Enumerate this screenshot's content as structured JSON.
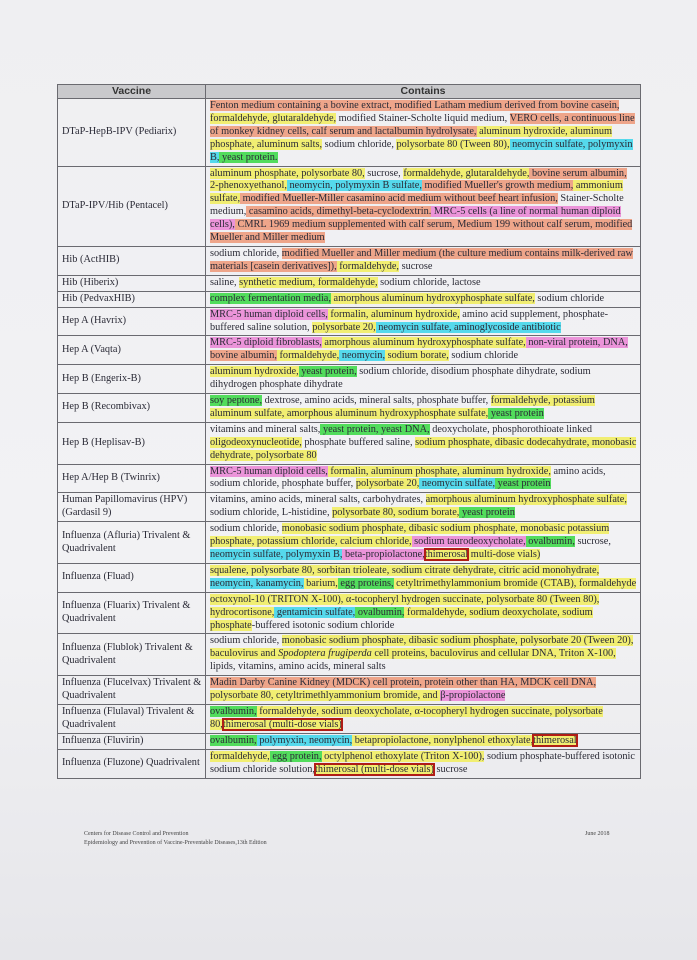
{
  "highlight_colors": {
    "o": "#eea58a",
    "y": "#f1ee72",
    "c": "#55d9ec",
    "g": "#52dc5c",
    "p": "#eb94d9",
    "r": "#b01d16"
  },
  "table": {
    "headers": [
      "Vaccine",
      "Contains"
    ],
    "rows": [
      {
        "vaccine": "DTaP-HepB-IPV (Pediarix)",
        "contains": [
          [
            "o",
            "Fenton medium containing a bovine extract, modified Latham medium derived from bovine casein, "
          ],
          [
            "y",
            "formaldehyde, glutaraldehyde,"
          ],
          [
            "n",
            " modified Stainer-Scholte liquid medium, "
          ],
          [
            "o",
            "VERO cells, a continuous line of monkey kidney cells, calf serum and lactalbumin hydrolysate,"
          ],
          [
            "y",
            " aluminum hydroxide, aluminum phosphate,  aluminum salts,"
          ],
          [
            "n",
            " sodium chloride, "
          ],
          [
            "y",
            "polysorbate 80 (Tween 80),"
          ],
          [
            "c",
            " neomycin sulfate, polymyxin B,"
          ],
          [
            "g",
            " yeast protein."
          ]
        ]
      },
      {
        "vaccine": "DTaP-IPV/Hib (Pentacel)",
        "contains": [
          [
            "y",
            "aluminum phosphate, polysorbate 80,"
          ],
          [
            "n",
            " sucrose, "
          ],
          [
            "y",
            "formaldehyde, glutaraldehyde,"
          ],
          [
            "o",
            " bovine serum albumin,"
          ],
          [
            "y",
            " 2-phenoxyethanol,"
          ],
          [
            "c",
            " neomycin,  polymyxin B sulfate,"
          ],
          [
            "o",
            " modified Mueller's growth medium,"
          ],
          [
            "y",
            " ammonium sulfate,"
          ],
          [
            "o",
            " modified Mueller-Miller casamino acid medium without beef heart infusion,"
          ],
          [
            "n",
            " Stainer-Scholte medium,"
          ],
          [
            "o",
            " casamino acids, dimethyl-beta-cyclodextrin."
          ],
          [
            "p",
            " MRC-5 cells (a line of normal human diploid cells),"
          ],
          [
            "o",
            " CMRL 1969 medium supplemented with calf serum, Medium 199 without calf serum, modified Mueller and Miller medium"
          ]
        ]
      },
      {
        "vaccine": "Hib (ActHIB)",
        "contains": [
          [
            "n",
            "sodium chloride, "
          ],
          [
            "o",
            "modified Mueller and Miller medium (the culture medium contains milk-derived raw materials [casein derivatives]),"
          ],
          [
            "y",
            "  formaldehyde,"
          ],
          [
            "n",
            " sucrose"
          ]
        ]
      },
      {
        "vaccine": "Hib (Hiberix)",
        "contains": [
          [
            "n",
            "saline, "
          ],
          [
            "y",
            "synthetic medium, formaldehyde,"
          ],
          [
            "n",
            " sodium chloride, lactose"
          ]
        ]
      },
      {
        "vaccine": "Hib (PedvaxHIB)",
        "contains": [
          [
            "g",
            "complex fermentation media,"
          ],
          [
            "y",
            " amorphous aluminum hydroxyphosphate sulfate,"
          ],
          [
            "n",
            " sodium chloride"
          ]
        ]
      },
      {
        "vaccine": "Hep A (Havrix)",
        "contains": [
          [
            "p",
            "MRC-5 human diploid cells,"
          ],
          [
            "y",
            " formalin, aluminum hydroxide,"
          ],
          [
            "n",
            "  amino acid supplement, phosphate-buffered saline solution, "
          ],
          [
            "y",
            "polysorbate 20,"
          ],
          [
            "c",
            "  neomycin sulfate, aminoglycoside antibiotic"
          ]
        ]
      },
      {
        "vaccine": "Hep A (Vaqta)",
        "contains": [
          [
            "p",
            "MRC-5 diploid fibroblasts,"
          ],
          [
            "y",
            " amorphous aluminum hydroxyphosphate sulfate,"
          ],
          [
            "p",
            " non-viral protein, DNA,"
          ],
          [
            "o",
            " bovine albumin,"
          ],
          [
            "y",
            " formaldehyde,"
          ],
          [
            "c",
            " neomycin,"
          ],
          [
            "y",
            " sodium borate,"
          ],
          [
            "n",
            "  sodium chloride"
          ]
        ]
      },
      {
        "vaccine": "Hep B (Engerix-B)",
        "contains": [
          [
            "y",
            "aluminum hydroxide,"
          ],
          [
            "g",
            " yeast protein,"
          ],
          [
            "n",
            " sodium chloride,  disodium phosphate dihydrate, sodium dihydrogen phosphate dihydrate"
          ]
        ]
      },
      {
        "vaccine": "Hep B (Recombivax)",
        "contains": [
          [
            "g",
            "soy peptone,"
          ],
          [
            "n",
            " dextrose, amino acids, mineral salts, phosphate buffer, "
          ],
          [
            "y",
            "formaldehyde, potassium aluminum sulfate, amorphous aluminum hydroxyphosphate sulfate,"
          ],
          [
            "g",
            " yeast protein"
          ]
        ]
      },
      {
        "vaccine": "Hep B (Heplisav-B)",
        "contains": [
          [
            "n",
            "vitamins and mineral salts,"
          ],
          [
            "g",
            " yeast protein, yeast DNA,"
          ],
          [
            "n",
            " deoxycholate, phosphorothioate linked "
          ],
          [
            "y",
            "oligodeoxynucleotide,"
          ],
          [
            "n",
            " phosphate buffered saline, "
          ],
          [
            "y",
            "sodium phosphate, dibasic dodecahydrate, monobasic dehydrate, polysorbate 80"
          ]
        ]
      },
      {
        "vaccine": "Hep A/Hep B (Twinrix)",
        "contains": [
          [
            "p",
            "MRC-5 human diploid cells,"
          ],
          [
            "y",
            " formalin, aluminum phosphate,  aluminum hydroxide,"
          ],
          [
            "n",
            "  amino acids, sodium chloride, phosphate buffer, "
          ],
          [
            "y",
            "polysorbate 20,"
          ],
          [
            "c",
            " neomycin sulfate,"
          ],
          [
            "g",
            " yeast protein"
          ]
        ]
      },
      {
        "vaccine": "Human Papillomavirus (HPV) (Gardasil 9)",
        "contains": [
          [
            "n",
            "vitamins, amino acids, mineral salts, carbohydrates, "
          ],
          [
            "y",
            "amorphous aluminum hydroxyphosphate sulfate,"
          ],
          [
            "n",
            " sodium chloride, L-histidine, "
          ],
          [
            "y",
            "polysorbate 80, sodium borate,"
          ],
          [
            "g",
            " yeast protein"
          ]
        ]
      },
      {
        "vaccine": "Influenza (Afluria) Trivalent & Quadrivalent",
        "contains": [
          [
            "n",
            "sodium chloride, "
          ],
          [
            "y",
            "monobasic sodium phosphate, dibasic sodium phosphate, monobasic potassium phosphate, potassium chloride, calcium chloride,"
          ],
          [
            "p",
            " sodium taurodeoxycholate,"
          ],
          [
            "g",
            " ovalbumin,"
          ],
          [
            "n",
            " sucrose, "
          ],
          [
            "c",
            "neomycin sulfate, polymyxin B,"
          ],
          [
            "p",
            " beta-propiolactone,"
          ],
          [
            "r",
            "thimerosal"
          ],
          [
            "y",
            " multi-dose vials)"
          ]
        ]
      },
      {
        "vaccine": "Influenza (Fluad)",
        "contains": [
          [
            "y",
            "squalene, polysorbate 80, sorbitan trioleate, sodium citrate dehydrate, citric acid monohydrate,"
          ],
          [
            "c",
            " neomycin, kanamycin,"
          ],
          [
            "y",
            " barium,"
          ],
          [
            "g",
            "  egg proteins,"
          ],
          [
            "y",
            " cetyltrimethylammonium bromide (CTAB), formaldehyde"
          ]
        ]
      },
      {
        "vaccine": "Influenza (Fluarix) Trivalent & Quadrivalent",
        "contains": [
          [
            "y",
            "octoxynol-10 (TRITON X-100), α-tocopheryl hydrogen succinate, polysorbate 80 (Tween 80), hydrocortisone,"
          ],
          [
            "c",
            " gentamicin sulfate,"
          ],
          [
            "g",
            " ovalbumin,"
          ],
          [
            "y",
            " formaldehyde, sodium deoxycholate, sodium phosphate"
          ],
          [
            "n",
            "-buffered isotonic sodium chloride"
          ]
        ]
      },
      {
        "vaccine": "Influenza (Flublok) Trivalent & Quadrivalent",
        "contains": [
          [
            "n",
            "sodium chloride, "
          ],
          [
            "y",
            "monobasic sodium phosphate, dibasic sodium phosphate, polysorbate 20 (Tween 20),  baculovirus and "
          ],
          [
            "yi",
            "Spodoptera frugiperda"
          ],
          [
            "y",
            " cell proteins, baculovirus and cellular DNA, Triton X-100,"
          ],
          [
            "n",
            " lipids, vitamins, amino acids, mineral salts"
          ]
        ]
      },
      {
        "vaccine": "Influenza (Flucelvax) Trivalent & Quadrivalent",
        "contains": [
          [
            "o",
            "Madin Darby Canine Kidney (MDCK) cell protein, protein other than HA, MDCK cell DNA,"
          ],
          [
            "y",
            " polysorbate 80, cetyltrimethlyammonium bromide, and "
          ],
          [
            "p",
            "β-propiolactone"
          ]
        ]
      },
      {
        "vaccine": "Influenza (Flulaval) Trivalent & Quadrivalent",
        "contains": [
          [
            "g",
            "ovalbumin,"
          ],
          [
            "y",
            " formaldehyde, sodium deoxycholate, α-tocopheryl hydrogen succinate, polysorbate 80,"
          ],
          [
            "r",
            "thimerosal (multi-dose vials)"
          ]
        ]
      },
      {
        "vaccine": "Influenza (Fluvirin)",
        "contains": [
          [
            "g",
            "ovalbumin,"
          ],
          [
            "c",
            " polymyxin, neomycin,"
          ],
          [
            "y",
            " betapropiolactone, nonylphenol ethoxylate,"
          ],
          [
            "r",
            "thimerosal"
          ]
        ]
      },
      {
        "vaccine": "Influenza (Fluzone) Quadrivalent",
        "contains": [
          [
            "y",
            "formaldehyde,"
          ],
          [
            "g",
            " egg protein,"
          ],
          [
            "y",
            " octylphenol ethoxylate (Triton X-100),"
          ],
          [
            "n",
            " sodium phosphate-buffered isotonic sodium chloride solution,"
          ],
          [
            "r",
            "thimerosal (multi-dose vials)"
          ],
          [
            "n",
            " sucrose"
          ]
        ]
      }
    ]
  },
  "footer": {
    "source_line1": "Centers for Disease Control and Prevention",
    "source_line2": "Epidemiology and Prevention of Vaccine-Preventable Diseases,13th Edition",
    "date": "June 2018"
  }
}
